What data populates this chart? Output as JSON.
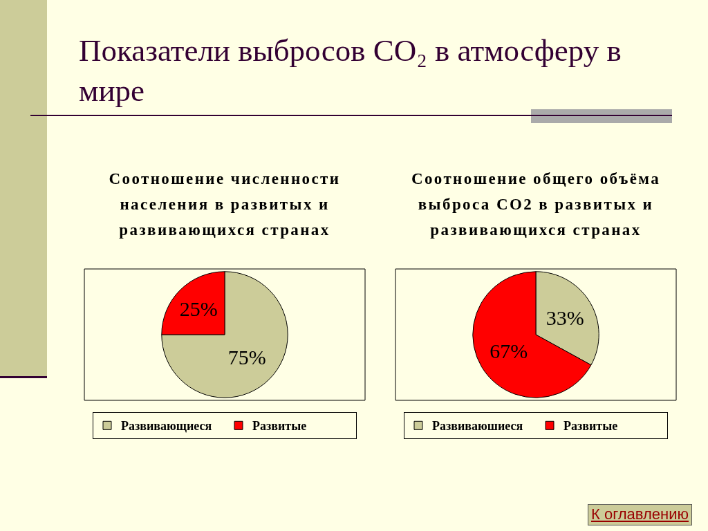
{
  "chart_data": [
    {
      "type": "pie",
      "title": "Соотношение численности населения в развитых и развивающихся странах",
      "categories": [
        "Развивающиеся",
        "Развитые"
      ],
      "values": [
        75,
        25
      ],
      "colors": [
        "#cccc99",
        "#ff0000"
      ],
      "value_labels": [
        "75%",
        "25%"
      ],
      "legend": "bottom",
      "annotations": [
        "Показатели выбросов CO₂ в атмосферу в мире"
      ]
    },
    {
      "type": "pie",
      "title": "Соотношение общего объёма выброса CO2 в развитых и развивающихся странах",
      "categories": [
        "Развиваюшиеся",
        "Развитые"
      ],
      "values": [
        33,
        67
      ],
      "colors": [
        "#cccc99",
        "#ff0000"
      ],
      "value_labels": [
        "33%",
        "67%"
      ],
      "legend": "bottom",
      "annotations": [
        "К оглавлению"
      ]
    }
  ]
}
